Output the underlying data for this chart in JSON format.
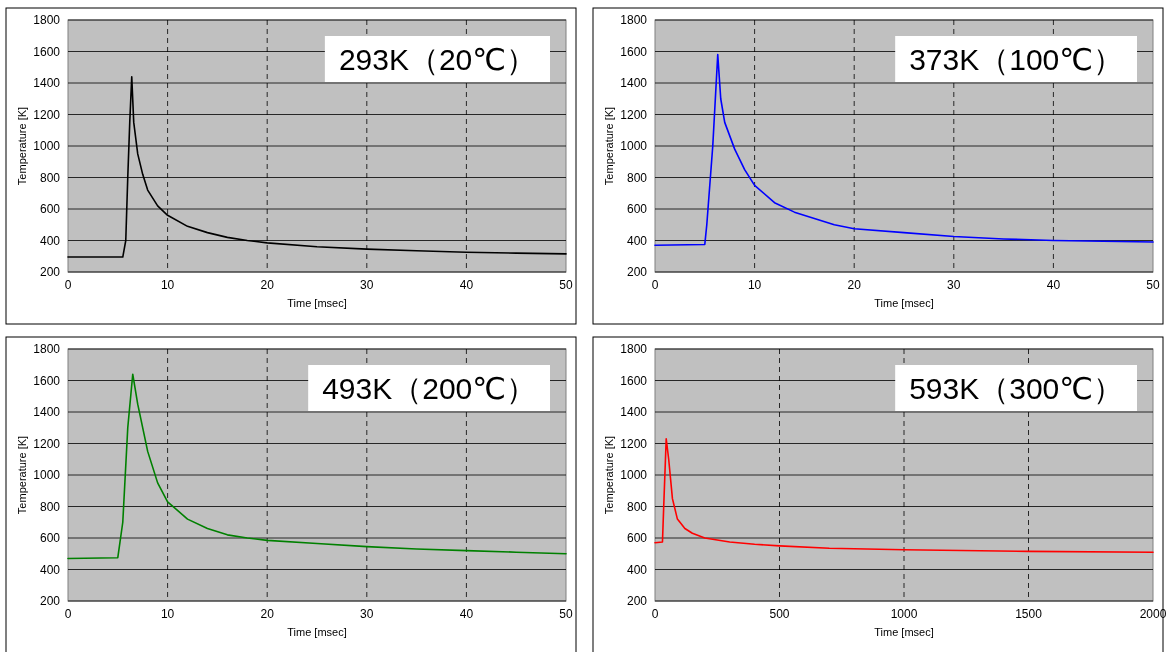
{
  "chart_data": [
    {
      "type": "line",
      "color": "#000000",
      "xlabel": "Time [msec]",
      "ylabel": "Temperature [K]",
      "annotations": [
        "293K（20℃）"
      ],
      "grid": true,
      "xlim": [
        0,
        50
      ],
      "xticks": [
        0,
        10,
        20,
        30,
        40,
        50
      ],
      "ylim": [
        200,
        1800
      ],
      "yticks": [
        200,
        400,
        600,
        800,
        1000,
        1200,
        1400,
        1600,
        1800
      ],
      "x": [
        0,
        5.5,
        5.8,
        6.0,
        6.2,
        6.4,
        6.6,
        7,
        7.5,
        8,
        9,
        10,
        12,
        14,
        16,
        18,
        20,
        25,
        30,
        35,
        40,
        45,
        50
      ],
      "values": [
        295,
        295,
        400,
        800,
        1150,
        1440,
        1150,
        950,
        820,
        720,
        620,
        560,
        490,
        450,
        420,
        400,
        385,
        360,
        345,
        335,
        325,
        320,
        315
      ]
    },
    {
      "type": "line",
      "color": "#0000ff",
      "xlabel": "Time [msec]",
      "ylabel": "Temperature [K]",
      "annotations": [
        "373K（100℃）"
      ],
      "grid": true,
      "xlim": [
        0,
        50
      ],
      "xticks": [
        0,
        10,
        20,
        30,
        40,
        50
      ],
      "ylim": [
        200,
        1800
      ],
      "yticks": [
        200,
        400,
        600,
        800,
        1000,
        1200,
        1400,
        1600,
        1800
      ],
      "x": [
        0,
        5,
        5.2,
        5.8,
        6.3,
        6.6,
        7,
        8,
        9,
        10,
        12,
        14,
        16,
        18,
        20,
        25,
        30,
        35,
        40,
        45,
        50
      ],
      "values": [
        370,
        375,
        500,
        1000,
        1580,
        1300,
        1150,
        980,
        850,
        750,
        640,
        580,
        540,
        500,
        475,
        450,
        425,
        410,
        400,
        395,
        390
      ]
    },
    {
      "type": "line",
      "color": "#008000",
      "xlabel": "Time [msec]",
      "ylabel": "Temperature [K]",
      "annotations": [
        "493K（200℃）"
      ],
      "grid": true,
      "xlim": [
        0,
        50
      ],
      "xticks": [
        0,
        10,
        20,
        30,
        40,
        50
      ],
      "ylim": [
        200,
        1800
      ],
      "yticks": [
        200,
        400,
        600,
        800,
        1000,
        1200,
        1400,
        1600,
        1800
      ],
      "x": [
        0,
        5,
        5.5,
        6,
        6.5,
        7,
        8,
        9,
        10,
        12,
        14,
        16,
        18,
        20,
        25,
        30,
        35,
        40,
        45,
        50
      ],
      "values": [
        470,
        475,
        700,
        1300,
        1640,
        1450,
        1150,
        950,
        830,
        720,
        660,
        620,
        600,
        585,
        565,
        545,
        530,
        520,
        510,
        500
      ]
    },
    {
      "type": "line",
      "color": "#ff0000",
      "xlabel": "Time [msec]",
      "ylabel": "Temperature [K]",
      "annotations": [
        "593K（300℃）"
      ],
      "grid": true,
      "xlim": [
        0,
        2000
      ],
      "xticks": [
        0,
        500,
        1000,
        1500,
        2000
      ],
      "ylim": [
        200,
        1800
      ],
      "yticks": [
        200,
        400,
        600,
        800,
        1000,
        1200,
        1400,
        1600,
        1800
      ],
      "x": [
        0,
        30,
        35,
        45,
        55,
        70,
        90,
        120,
        150,
        200,
        300,
        400,
        500,
        700,
        1000,
        1500,
        2000
      ],
      "values": [
        570,
        575,
        800,
        1230,
        1100,
        850,
        720,
        660,
        630,
        600,
        575,
        560,
        550,
        535,
        525,
        515,
        510
      ]
    }
  ]
}
